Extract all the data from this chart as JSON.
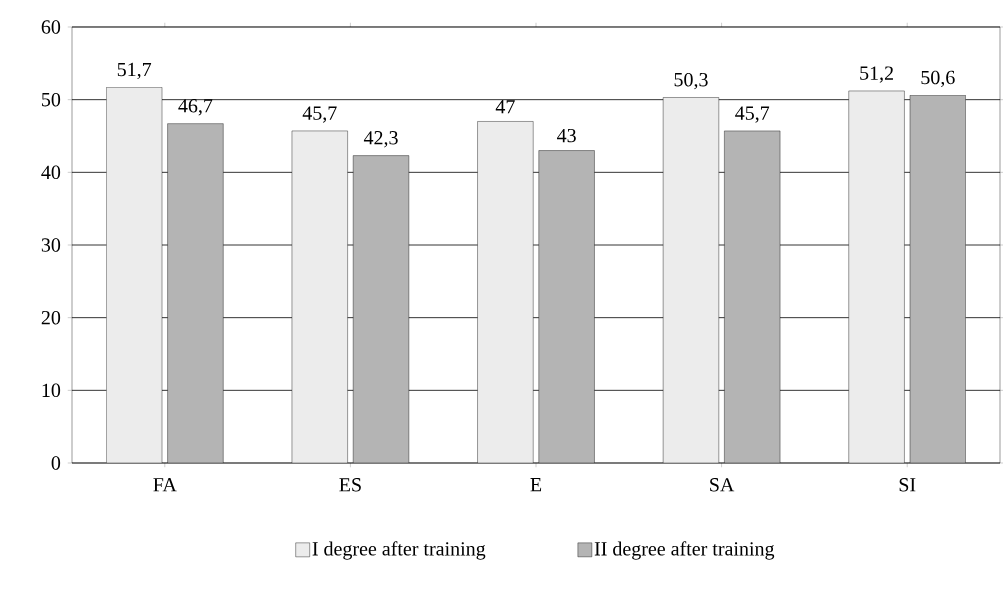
{
  "chart_data": {
    "type": "bar",
    "categories": [
      "FA",
      "ES",
      "E",
      "SA",
      "SI"
    ],
    "series": [
      {
        "name": "I degree after training",
        "color": "#ececec",
        "values": [
          51.7,
          45.7,
          47,
          50.3,
          51.2
        ],
        "value_labels": [
          "51,7",
          "45,7",
          "47",
          "50,3",
          "51,2"
        ]
      },
      {
        "name": "II degree after training",
        "color": "#b4b4b4",
        "values": [
          46.7,
          42.3,
          43,
          45.7,
          50.6
        ],
        "value_labels": [
          "46,7",
          "42,3",
          "43",
          "45,7",
          "50,6"
        ]
      }
    ],
    "ylim": [
      0,
      60
    ],
    "yticks": [
      0,
      10,
      20,
      30,
      40,
      50,
      60
    ],
    "grid": "y",
    "legend": "bottom"
  }
}
